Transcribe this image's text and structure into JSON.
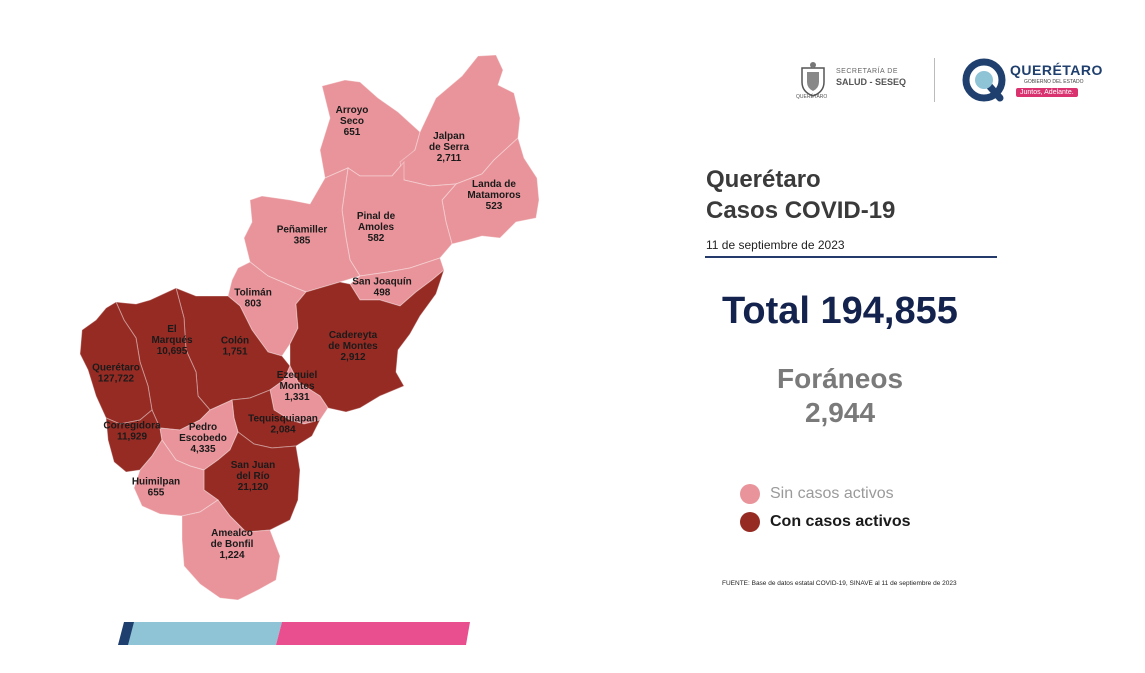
{
  "title": {
    "line1": "Querétaro",
    "line2": "Casos COVID-19",
    "date": "11 de septiembre de 2023"
  },
  "total": {
    "text": "Total 194,855"
  },
  "foraneos": {
    "label": "Foráneos",
    "value": "2,944"
  },
  "legend": {
    "items": [
      {
        "label": "Sin casos activos",
        "color": "#e8949a"
      },
      {
        "label": "Con casos activos",
        "color": "#962b24"
      }
    ]
  },
  "source": "FUENTE: Base de datos estatal COVID-19, SINAVE al 11 de septiembre de 2023",
  "logos": {
    "secretaria_small": "SECRETARÍA DE",
    "secretaria_big": "SALUD - SESEQ",
    "seal_label": "QUERÉTARO",
    "gov_title": "QUERÉTARO",
    "gov_subtitle": "GOBIERNO DEL ESTADO",
    "gov_tag": "Juntos, Adelante."
  },
  "colors": {
    "sin_casos": "#e8949a",
    "con_casos": "#962b24",
    "bar_dark": "#1f3f6e",
    "bar_light": "#8fc3d6",
    "bar_pink": "#e94f8f"
  },
  "municipalities": [
    {
      "id": "arroyo-seco",
      "name_lines": [
        "Arroyo",
        "Seco"
      ],
      "value": "651",
      "active": false
    },
    {
      "id": "jalpan",
      "name_lines": [
        "Jalpan",
        "de Serra"
      ],
      "value": "2,711",
      "active": false
    },
    {
      "id": "landa",
      "name_lines": [
        "Landa de",
        "Matamoros"
      ],
      "value": "523",
      "active": false
    },
    {
      "id": "pinal",
      "name_lines": [
        "Pinal de",
        "Amoles"
      ],
      "value": "582",
      "active": false
    },
    {
      "id": "penamiller",
      "name_lines": [
        "Peñamiller"
      ],
      "value": "385",
      "active": false
    },
    {
      "id": "san-joaquin",
      "name_lines": [
        "San Joaquín"
      ],
      "value": "498",
      "active": false
    },
    {
      "id": "toliman",
      "name_lines": [
        "Tolimán"
      ],
      "value": "803",
      "active": false
    },
    {
      "id": "cadereyta",
      "name_lines": [
        "Cadereyta",
        "de Montes"
      ],
      "value": "2,912",
      "active": true
    },
    {
      "id": "colon",
      "name_lines": [
        "Colón"
      ],
      "value": "1,751",
      "active": true
    },
    {
      "id": "el-marques",
      "name_lines": [
        "El",
        "Marqués"
      ],
      "value": "10,695",
      "active": true
    },
    {
      "id": "queretaro",
      "name_lines": [
        "Querétaro"
      ],
      "value": "127,722",
      "active": true
    },
    {
      "id": "ezequiel-montes",
      "name_lines": [
        "Ezequiel",
        "Montes"
      ],
      "value": "1,331",
      "active": false
    },
    {
      "id": "tequisquiapan",
      "name_lines": [
        "Tequisquiapan"
      ],
      "value": "2,084",
      "active": true
    },
    {
      "id": "corregidora",
      "name_lines": [
        "Corregidora"
      ],
      "value": "11,929",
      "active": true
    },
    {
      "id": "pedro-escobedo",
      "name_lines": [
        "Pedro",
        "Escobedo"
      ],
      "value": "4,335",
      "active": false
    },
    {
      "id": "san-juan-del-rio",
      "name_lines": [
        "San Juan",
        "del Río"
      ],
      "value": "21,120",
      "active": true
    },
    {
      "id": "huimilpan",
      "name_lines": [
        "Huimilpan"
      ],
      "value": "655",
      "active": false
    },
    {
      "id": "amealco",
      "name_lines": [
        "Amealco",
        "de Bonfil"
      ],
      "value": "1,224",
      "active": false
    }
  ]
}
